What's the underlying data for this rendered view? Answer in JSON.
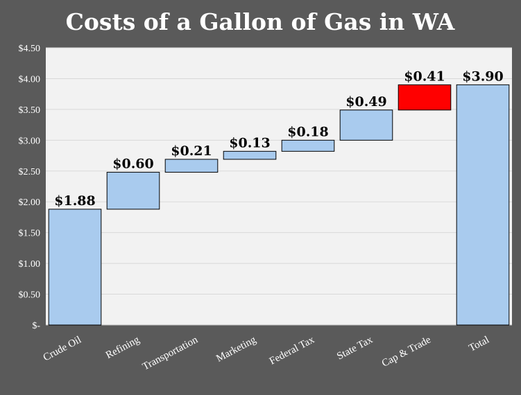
{
  "chart_data": {
    "type": "bar",
    "subtype": "waterfall",
    "title": "Costs of a Gallon of Gas in WA",
    "xlabel": "",
    "ylabel": "",
    "ylim": [
      0,
      4.5
    ],
    "yticks": [
      0,
      0.5,
      1.0,
      1.5,
      2.0,
      2.5,
      3.0,
      3.5,
      4.0,
      4.5
    ],
    "ytick_labels": [
      "$-",
      "$0.50",
      "$1.00",
      "$1.50",
      "$2.00",
      "$2.50",
      "$3.00",
      "$3.50",
      "$4.00",
      "$4.50"
    ],
    "grid": true,
    "legend": "none",
    "categories": [
      "Crude Oil",
      "Refining",
      "Transportation",
      "Marketing",
      "Federal Tax",
      "State Tax",
      "Cap & Trade",
      "Total"
    ],
    "values": [
      1.88,
      0.6,
      0.21,
      0.13,
      0.18,
      0.49,
      0.41,
      3.9
    ],
    "bases": [
      0,
      1.88,
      2.48,
      2.69,
      2.82,
      3.0,
      3.49,
      0
    ],
    "value_labels": [
      "$1.88",
      "$0.60",
      "$0.21",
      "$0.13",
      "$0.18",
      "$0.49",
      "$0.41",
      "$3.90"
    ],
    "colors": {
      "bar": "#a9cbee",
      "highlight": "#ff0000",
      "background": "#5a5a5a",
      "plot_area": "#f2f2f2",
      "gridline": "#d9d9d9",
      "text": "#ffffff",
      "label": "#000000"
    },
    "bar_colors": [
      "bar",
      "bar",
      "bar",
      "bar",
      "bar",
      "bar",
      "highlight",
      "bar"
    ]
  }
}
